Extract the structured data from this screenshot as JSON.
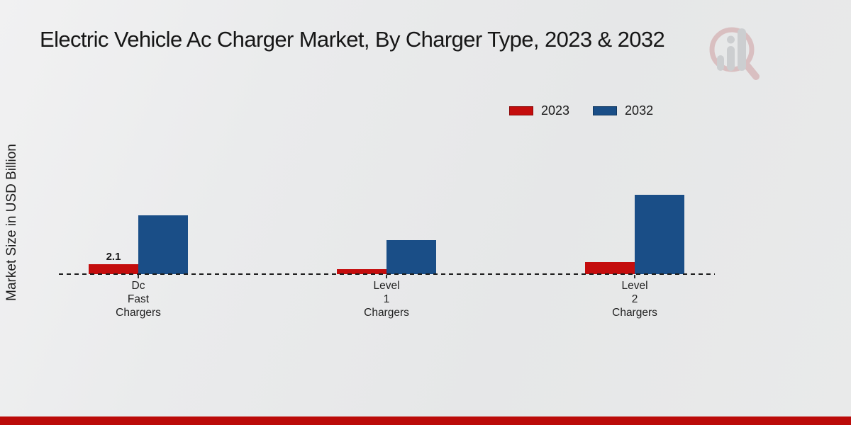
{
  "title": "Electric Vehicle Ac Charger Market, By Charger Type, 2023 & 2032",
  "y_axis_label": "Market Size in USD Billion",
  "legend": {
    "items": [
      {
        "label": "2023",
        "color": "#c40d0d"
      },
      {
        "label": "2032",
        "color": "#1a4e87"
      }
    ]
  },
  "chart_data": {
    "type": "bar",
    "title": "Electric Vehicle Ac Charger Market, By Charger Type, 2023 & 2032",
    "ylabel": "Market Size in USD Billion",
    "xlabel": "",
    "categories": [
      "Dc Fast Chargers",
      "Level 1 Chargers",
      "Level 2 Chargers"
    ],
    "series": [
      {
        "name": "2023",
        "color": "#c40d0d",
        "values": [
          2.1,
          1.1,
          2.6
        ]
      },
      {
        "name": "2032",
        "color": "#1a4e87",
        "values": [
          12.4,
          7.2,
          16.8
        ]
      }
    ],
    "annotations": [
      {
        "series": "2023",
        "category_index": 0,
        "text": "2.1"
      }
    ],
    "ylim": [
      0,
      20
    ],
    "grid": false,
    "baseline_style": "dashed",
    "legend_position": "top-right"
  },
  "watermark": {
    "icon": "magnifier-bar-chart-logo"
  },
  "footer": {
    "accent_color": "#bb0b09"
  }
}
